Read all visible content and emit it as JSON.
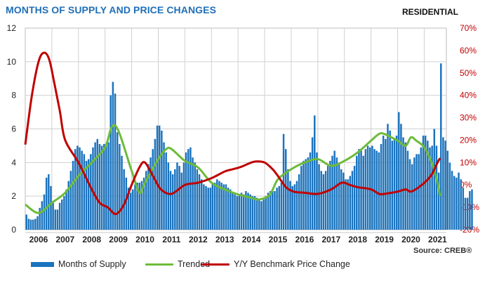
{
  "header": {
    "title": "MONTHS OF SUPPLY AND PRICE CHANGES",
    "tag": "RESIDENTIAL"
  },
  "footer": {
    "source": "Source: CREB®"
  },
  "colors": {
    "bar": "#1b73bd",
    "trend": "#6dbb3a",
    "price": "#c00000",
    "title": "#1f6fb8",
    "grid": "#d0d0d0"
  },
  "legend": [
    {
      "label": "Months of Supply",
      "kind": "box",
      "color": "#1b73bd"
    },
    {
      "label": "Trended",
      "kind": "line",
      "color": "#6dbb3a"
    },
    {
      "label": "Y/Y Benchmark Price Change",
      "kind": "line",
      "color": "#c00000"
    }
  ],
  "chart_data": {
    "type": "bar",
    "title": "MONTHS OF SUPPLY AND PRICE CHANGES",
    "x_labels": [
      "2006",
      "2007",
      "2008",
      "2009",
      "2010",
      "2011",
      "2012",
      "2013",
      "2014",
      "2015",
      "2016",
      "2017",
      "2018",
      "2019",
      "2020",
      "2021"
    ],
    "left_axis": {
      "ylim": [
        0,
        12
      ],
      "ticks": [
        0,
        2,
        4,
        6,
        8,
        10,
        12
      ]
    },
    "right_axis": {
      "ylim": [
        -20,
        70
      ],
      "ticks": [
        "-20%",
        "-10%",
        "0%",
        "10%",
        "20%",
        "30%",
        "40%",
        "50%",
        "60%",
        "70%"
      ],
      "unit": "%"
    },
    "grid": true,
    "legend_position": "bottom",
    "series": [
      {
        "name": "Months of Supply",
        "type": "bar",
        "axis": "left",
        "x_start": 2005.5,
        "interval": "monthly",
        "values": [
          0.9,
          0.65,
          0.6,
          0.6,
          0.65,
          0.8,
          1.3,
          1.7,
          2.1,
          3.1,
          3.3,
          2.6,
          1.6,
          1.2,
          1.2,
          1.6,
          1.8,
          2.0,
          2.4,
          2.9,
          3.5,
          4.1,
          4.8,
          5.0,
          4.9,
          4.7,
          4.5,
          4.1,
          4.2,
          4.5,
          4.9,
          5.2,
          5.4,
          5.1,
          5.0,
          5.1,
          5.1,
          5.2,
          8.0,
          8.8,
          8.1,
          5.8,
          5.1,
          4.4,
          3.6,
          3.1,
          2.5,
          2.2,
          2.4,
          2.7,
          2.8,
          2.8,
          2.9,
          3.1,
          3.5,
          3.9,
          4.3,
          4.8,
          5.4,
          6.2,
          6.2,
          5.9,
          5.2,
          4.6,
          4.0,
          3.5,
          3.3,
          3.6,
          4.0,
          3.8,
          3.4,
          4.0,
          4.6,
          4.8,
          4.9,
          4.3,
          4.0,
          3.6,
          3.3,
          3.0,
          2.7,
          2.6,
          2.5,
          2.5,
          2.7,
          2.8,
          3.0,
          2.9,
          2.8,
          2.7,
          2.7,
          2.5,
          2.4,
          2.2,
          2.1,
          2.0,
          2.1,
          2.2,
          2.1,
          2.3,
          2.2,
          2.1,
          2.0,
          2.0,
          1.9,
          1.8,
          1.7,
          1.8,
          2.0,
          2.2,
          2.3,
          2.4,
          2.3,
          2.5,
          2.6,
          2.8,
          5.7,
          4.8,
          3.6,
          2.9,
          2.6,
          2.7,
          2.9,
          3.3,
          3.8,
          4.1,
          4.2,
          4.3,
          4.6,
          5.5,
          6.8,
          4.6,
          3.9,
          3.5,
          3.3,
          3.5,
          3.8,
          4.1,
          4.4,
          4.7,
          4.3,
          3.9,
          3.6,
          3.4,
          3.0,
          3.0,
          3.2,
          3.5,
          3.8,
          4.4,
          4.8,
          4.7,
          4.4,
          4.8,
          5.0,
          4.9,
          5.0,
          4.8,
          4.7,
          4.6,
          5.1,
          5.6,
          5.4,
          6.3,
          5.9,
          5.3,
          5.4,
          5.6,
          7.0,
          6.3,
          5.5,
          5.2,
          4.7,
          4.2,
          3.9,
          4.3,
          4.5,
          4.5,
          4.9,
          5.6,
          5.6,
          5.3,
          4.9,
          5.0,
          6.0,
          5.0,
          3.4,
          9.9,
          5.5,
          5.3,
          4.7,
          4.0,
          3.5,
          3.2,
          3.1,
          3.4,
          3.0,
          2.5,
          1.9,
          1.9,
          2.3,
          2.4
        ]
      },
      {
        "name": "Trended",
        "type": "line",
        "axis": "left",
        "points": [
          [
            2005.5,
            1.5
          ],
          [
            2006.0,
            1.0
          ],
          [
            2006.5,
            1.6
          ],
          [
            2007.0,
            2.2
          ],
          [
            2007.5,
            3.2
          ],
          [
            2008.0,
            4.0
          ],
          [
            2008.5,
            4.9
          ],
          [
            2008.75,
            6.1
          ],
          [
            2009.0,
            5.9
          ],
          [
            2009.5,
            3.5
          ],
          [
            2009.8,
            2.2
          ],
          [
            2010.0,
            2.8
          ],
          [
            2010.5,
            4.2
          ],
          [
            2010.8,
            4.8
          ],
          [
            2011.0,
            4.8
          ],
          [
            2011.5,
            4.1
          ],
          [
            2012.0,
            3.7
          ],
          [
            2012.5,
            2.8
          ],
          [
            2013.0,
            2.4
          ],
          [
            2013.5,
            2.1
          ],
          [
            2014.0,
            1.9
          ],
          [
            2014.3,
            1.8
          ],
          [
            2014.7,
            2.1
          ],
          [
            2015.0,
            3.0
          ],
          [
            2015.5,
            3.6
          ],
          [
            2016.0,
            4.0
          ],
          [
            2016.5,
            4.2
          ],
          [
            2017.0,
            3.8
          ],
          [
            2017.5,
            4.1
          ],
          [
            2018.0,
            4.6
          ],
          [
            2018.5,
            5.3
          ],
          [
            2018.8,
            5.7
          ],
          [
            2019.0,
            5.7
          ],
          [
            2019.5,
            5.3
          ],
          [
            2019.8,
            5.0
          ],
          [
            2020.0,
            5.5
          ],
          [
            2020.2,
            5.3
          ],
          [
            2020.5,
            4.9
          ],
          [
            2020.8,
            3.9
          ],
          [
            2021.0,
            2.8
          ],
          [
            2021.1,
            2.0
          ]
        ]
      },
      {
        "name": "Y/Y Benchmark Price Change",
        "type": "line",
        "axis": "right",
        "points": [
          [
            2005.5,
            18
          ],
          [
            2005.75,
            40
          ],
          [
            2006.0,
            55
          ],
          [
            2006.2,
            59
          ],
          [
            2006.4,
            56
          ],
          [
            2006.6,
            45
          ],
          [
            2006.8,
            33
          ],
          [
            2007.0,
            20
          ],
          [
            2007.5,
            10
          ],
          [
            2008.0,
            -2
          ],
          [
            2008.3,
            -8
          ],
          [
            2008.6,
            -10
          ],
          [
            2008.9,
            -13
          ],
          [
            2009.2,
            -9
          ],
          [
            2009.5,
            0
          ],
          [
            2009.8,
            8
          ],
          [
            2010.0,
            10
          ],
          [
            2010.3,
            4
          ],
          [
            2010.6,
            -2
          ],
          [
            2011.0,
            -4
          ],
          [
            2011.5,
            0
          ],
          [
            2012.0,
            1
          ],
          [
            2012.5,
            3
          ],
          [
            2013.0,
            6
          ],
          [
            2013.3,
            7
          ],
          [
            2013.6,
            8
          ],
          [
            2014.0,
            10
          ],
          [
            2014.2,
            10.5
          ],
          [
            2014.5,
            10
          ],
          [
            2014.8,
            7
          ],
          [
            2015.0,
            4
          ],
          [
            2015.3,
            -1
          ],
          [
            2015.6,
            -3
          ],
          [
            2016.0,
            -3.5
          ],
          [
            2016.5,
            -4
          ],
          [
            2017.0,
            -2
          ],
          [
            2017.4,
            1
          ],
          [
            2017.7,
            0
          ],
          [
            2018.0,
            -1
          ],
          [
            2018.5,
            -2
          ],
          [
            2018.8,
            -4
          ],
          [
            2019.0,
            -4
          ],
          [
            2019.5,
            -3
          ],
          [
            2019.8,
            -2
          ],
          [
            2020.0,
            -3
          ],
          [
            2020.3,
            -1
          ],
          [
            2020.6,
            2
          ],
          [
            2020.8,
            5
          ],
          [
            2021.0,
            10
          ],
          [
            2021.1,
            12
          ]
        ]
      }
    ]
  }
}
